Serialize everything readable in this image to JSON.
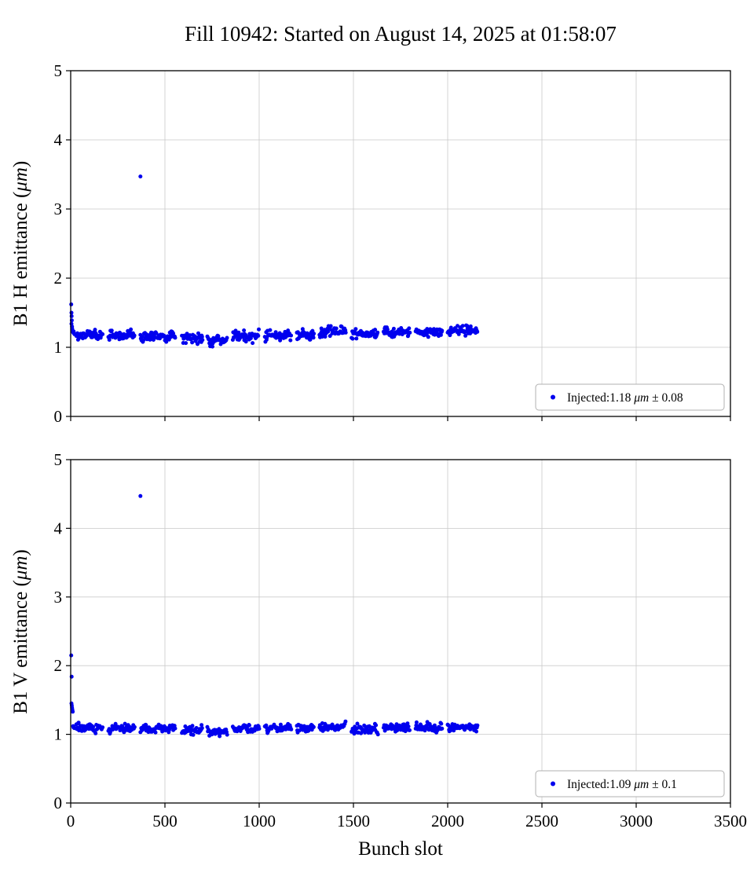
{
  "title": "Fill 10942: Started on August 14, 2025 at 01:58:07",
  "chart_data": {
    "type": "scatter",
    "x_axis": {
      "label": "Bunch slot",
      "lim": [
        0,
        3500
      ],
      "ticks": [
        0,
        500,
        1000,
        1500,
        2000,
        2500,
        3000,
        3500
      ]
    },
    "y_axis": {
      "lim": [
        0,
        5
      ],
      "ticks": [
        0,
        1,
        2,
        3,
        4,
        5
      ]
    },
    "grid": true,
    "legend_position": "lower right",
    "marker": {
      "color": "#0000ee",
      "size": 2.5
    },
    "charts": [
      {
        "name": "B1 H emittance",
        "ylabel_prefix": "B1 H emittance (",
        "unit": "μm",
        "ylabel_close": ")",
        "legend": {
          "prefix": "Injected:",
          "mean": "1.18",
          "unit": "μm",
          "pm": "±",
          "std": "0.08"
        },
        "band": {
          "mean": 1.18,
          "sigma": 0.035,
          "trains": [
            {
              "range": [
                30,
                170
              ],
              "offset": 0
            },
            {
              "range": [
                200,
                340
              ],
              "offset": 0
            },
            {
              "range": [
                370,
                555
              ],
              "offset": -0.02
            },
            {
              "range": [
                590,
                700
              ],
              "offset": -0.04
            },
            {
              "range": [
                725,
                830
              ],
              "offset": -0.08
            },
            {
              "range": [
                860,
                1000
              ],
              "offset": -0.02
            },
            {
              "range": [
                1030,
                1170
              ],
              "offset": -0.01
            },
            {
              "range": [
                1200,
                1290
              ],
              "offset": 0
            },
            {
              "range": [
                1320,
                1460
              ],
              "offset": 0.05
            },
            {
              "range": [
                1490,
                1630
              ],
              "offset": 0.01
            },
            {
              "range": [
                1660,
                1800
              ],
              "offset": 0.04
            },
            {
              "range": [
                1830,
                1970
              ],
              "offset": 0.04
            },
            {
              "range": [
                2000,
                2160
              ],
              "offset": 0.06
            }
          ]
        },
        "start_points": [
          [
            3,
            1.62
          ],
          [
            4,
            1.5
          ],
          [
            5,
            1.45
          ],
          [
            6,
            1.39
          ],
          [
            4,
            1.34
          ],
          [
            7,
            1.3
          ],
          [
            8,
            1.27
          ],
          [
            10,
            1.24
          ],
          [
            12,
            1.22
          ],
          [
            14,
            1.21
          ],
          [
            16,
            1.23
          ],
          [
            18,
            1.2
          ],
          [
            20,
            1.19
          ]
        ],
        "outliers": [
          [
            370,
            3.47
          ]
        ]
      },
      {
        "name": "B1 V emittance",
        "ylabel_prefix": "B1 V emittance (",
        "unit": "μm",
        "ylabel_close": ")",
        "legend": {
          "prefix": "Injected:",
          "mean": "1.09",
          "unit": "μm",
          "pm": "±",
          "std": "0.1"
        },
        "band": {
          "mean": 1.09,
          "sigma": 0.03,
          "trains": [
            {
              "range": [
                30,
                170
              ],
              "offset": 0.01
            },
            {
              "range": [
                200,
                340
              ],
              "offset": 0
            },
            {
              "range": [
                370,
                555
              ],
              "offset": -0.01
            },
            {
              "range": [
                590,
                700
              ],
              "offset": -0.03
            },
            {
              "range": [
                725,
                830
              ],
              "offset": -0.05
            },
            {
              "range": [
                860,
                1000
              ],
              "offset": -0.01
            },
            {
              "range": [
                1030,
                1170
              ],
              "offset": 0
            },
            {
              "range": [
                1200,
                1290
              ],
              "offset": 0.01
            },
            {
              "range": [
                1320,
                1460
              ],
              "offset": 0.02
            },
            {
              "range": [
                1490,
                1630
              ],
              "offset": -0.02
            },
            {
              "range": [
                1660,
                1800
              ],
              "offset": 0.01
            },
            {
              "range": [
                1830,
                1970
              ],
              "offset": 0.01
            },
            {
              "range": [
                2000,
                2160
              ],
              "offset": 0
            }
          ]
        },
        "start_points": [
          [
            3,
            2.15
          ],
          [
            5,
            1.84
          ],
          [
            4,
            1.45
          ],
          [
            6,
            1.42
          ],
          [
            7,
            1.39
          ],
          [
            8,
            1.37
          ],
          [
            9,
            1.35
          ],
          [
            11,
            1.33
          ],
          [
            13,
            1.12
          ],
          [
            15,
            1.1
          ],
          [
            17,
            1.11
          ],
          [
            19,
            1.09
          ]
        ],
        "outliers": [
          [
            370,
            4.47
          ]
        ]
      }
    ]
  }
}
